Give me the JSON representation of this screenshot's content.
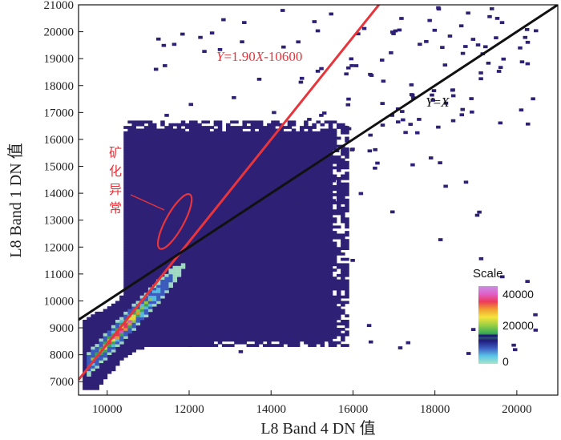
{
  "chart_data": {
    "type": "heatmap",
    "subtype": "2d-density-scatter",
    "xlabel": "L8 Band 4 DN 值",
    "ylabel": "L8 Band 1 DN 值",
    "xlim": [
      9300,
      21000
    ],
    "ylim": [
      6500,
      21000
    ],
    "x_ticks": [
      10000,
      12000,
      14000,
      16000,
      18000,
      20000
    ],
    "y_ticks": [
      7000,
      8000,
      9000,
      10000,
      11000,
      12000,
      13000,
      14000,
      15000,
      16000,
      17000,
      18000,
      19000,
      20000,
      21000
    ],
    "series": [
      {
        "name": "Y=1.90X-10600",
        "kind": "regression",
        "slope": 1.9,
        "intercept": -10600,
        "color": "#e8343b"
      },
      {
        "name": "Y=X",
        "kind": "reference",
        "slope": 1.0,
        "intercept": 0,
        "color": "#111111"
      }
    ],
    "annotations": {
      "fit_label_y": "Y",
      "fit_label_rest": "=1.90",
      "fit_label_x": "X",
      "fit_label_tail": "-10600",
      "identity_label_y": "Y",
      "identity_label_eq": "=",
      "identity_label_x": "X",
      "anomaly_chars": [
        "矿",
        "化",
        "异",
        "常"
      ],
      "anomaly_ellipse_center": [
        11650,
        12950
      ],
      "anomaly_ellipse_semi_axes": [
        1150,
        330
      ],
      "anomaly_ellipse_rotation_deg": -61
    },
    "density_model": {
      "seed": 7,
      "dense_core": {
        "x_range": [
          10400,
          15800
        ],
        "y_range": [
          8300,
          16600
        ]
      },
      "scattered_sample_count": 260,
      "hotspot": [
        10300,
        8900
      ]
    },
    "legend": {
      "title": "Scale",
      "range": [
        0,
        40000
      ],
      "ticks": [
        0,
        20000,
        40000
      ],
      "colors": [
        "#a8e6c8",
        "#5bc6e8",
        "#3d5fc2",
        "#1f1a7a",
        "#3fae56",
        "#9bd043",
        "#f6e43c",
        "#f0a030",
        "#ec3a5a",
        "#e060c8",
        "#c890e0"
      ],
      "position": "bottom-right"
    }
  },
  "colors": {
    "background_density": "#2e2175",
    "fit_line": "#e8343b",
    "identity_line": "#111111"
  }
}
